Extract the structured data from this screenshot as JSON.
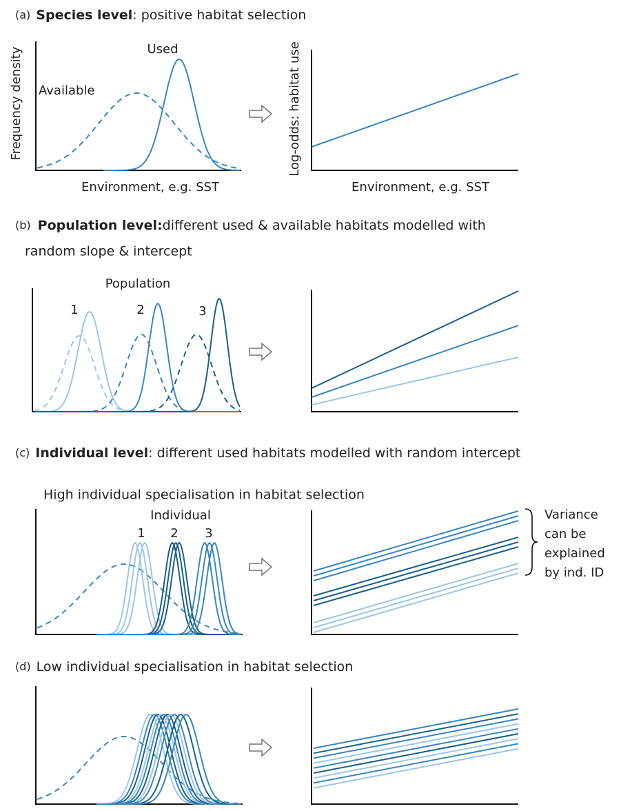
{
  "panels": {
    "a": {
      "letter": "(a)",
      "heading": "Species level",
      "text": ": positive habitat selection",
      "y_label": "Frequency density",
      "used": "Used",
      "available": "Available",
      "x_label": "Environment, e.g. SST",
      "right_y_label": "Log-odds: habitat use",
      "right_x_label": "Environment, e.g. SST"
    },
    "b": {
      "letter": "(b)",
      "heading": "Population level:",
      "text": "different used & available habitats modelled with",
      "text2": "random slope & intercept",
      "group_label": "Population",
      "groups": [
        "1",
        "2",
        "3"
      ]
    },
    "c": {
      "letter": "(c)",
      "heading": "Individual level",
      "text": ": different used habitats modelled with random intercept",
      "subtitle": "High individual specialisation in habitat selection",
      "group_label": "Individual",
      "groups": [
        "1",
        "2",
        "3"
      ],
      "note": [
        "Variance",
        "can be",
        "explained",
        "by ind. ID"
      ]
    },
    "d": {
      "letter": "(d)",
      "subtitle": "Low individual specialisation in habitat selection"
    }
  }
}
